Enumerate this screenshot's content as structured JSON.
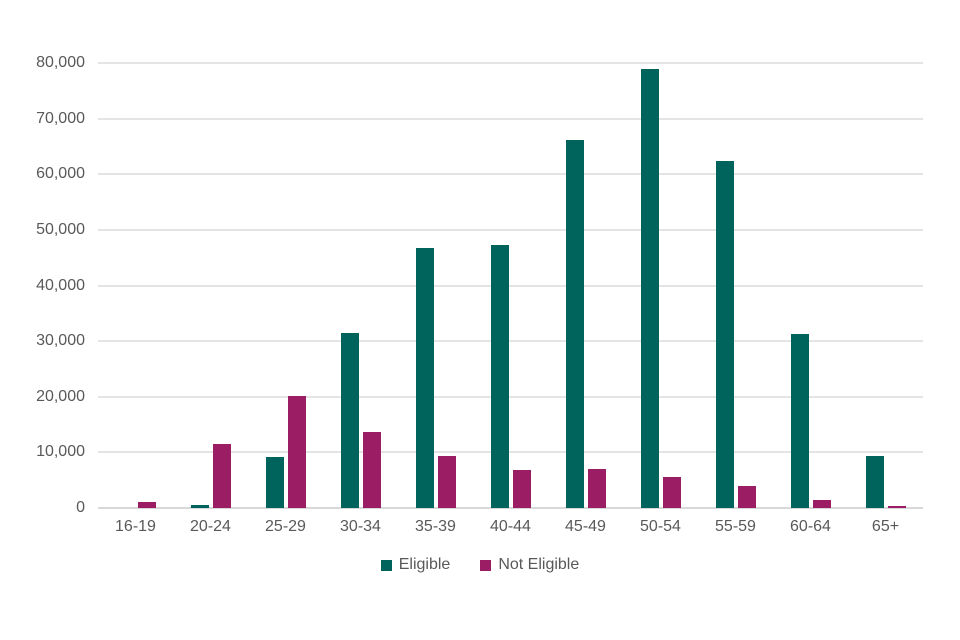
{
  "chart_data": {
    "type": "bar",
    "title": "",
    "xlabel": "",
    "ylabel": "",
    "categories": [
      "16-19",
      "20-24",
      "25-29",
      "30-34",
      "35-39",
      "40-44",
      "45-49",
      "50-54",
      "55-59",
      "60-64",
      "65+"
    ],
    "series": [
      {
        "name": "Eligible",
        "color": "#00635C",
        "values": [
          0,
          500,
          9100,
          31500,
          46800,
          47200,
          66100,
          79000,
          62300,
          31200,
          9300
        ]
      },
      {
        "name": "Not Eligible",
        "color": "#9B1D64",
        "values": [
          1000,
          11500,
          20100,
          13600,
          9400,
          6900,
          7100,
          5500,
          4000,
          1500,
          300
        ]
      }
    ],
    "ylim": [
      0,
      80000
    ],
    "ytick_interval": 10000,
    "ytick_labels": [
      "0",
      "10,000",
      "20,000",
      "30,000",
      "40,000",
      "50,000",
      "60,000",
      "70,000",
      "80,000"
    ],
    "grid": "horizontal",
    "legend_position": "bottom-center",
    "colors": {
      "grid_line": "#e4e4e4",
      "axis_line": "#d8d8d8",
      "label_text": "#595959",
      "background": "#ffffff"
    }
  }
}
